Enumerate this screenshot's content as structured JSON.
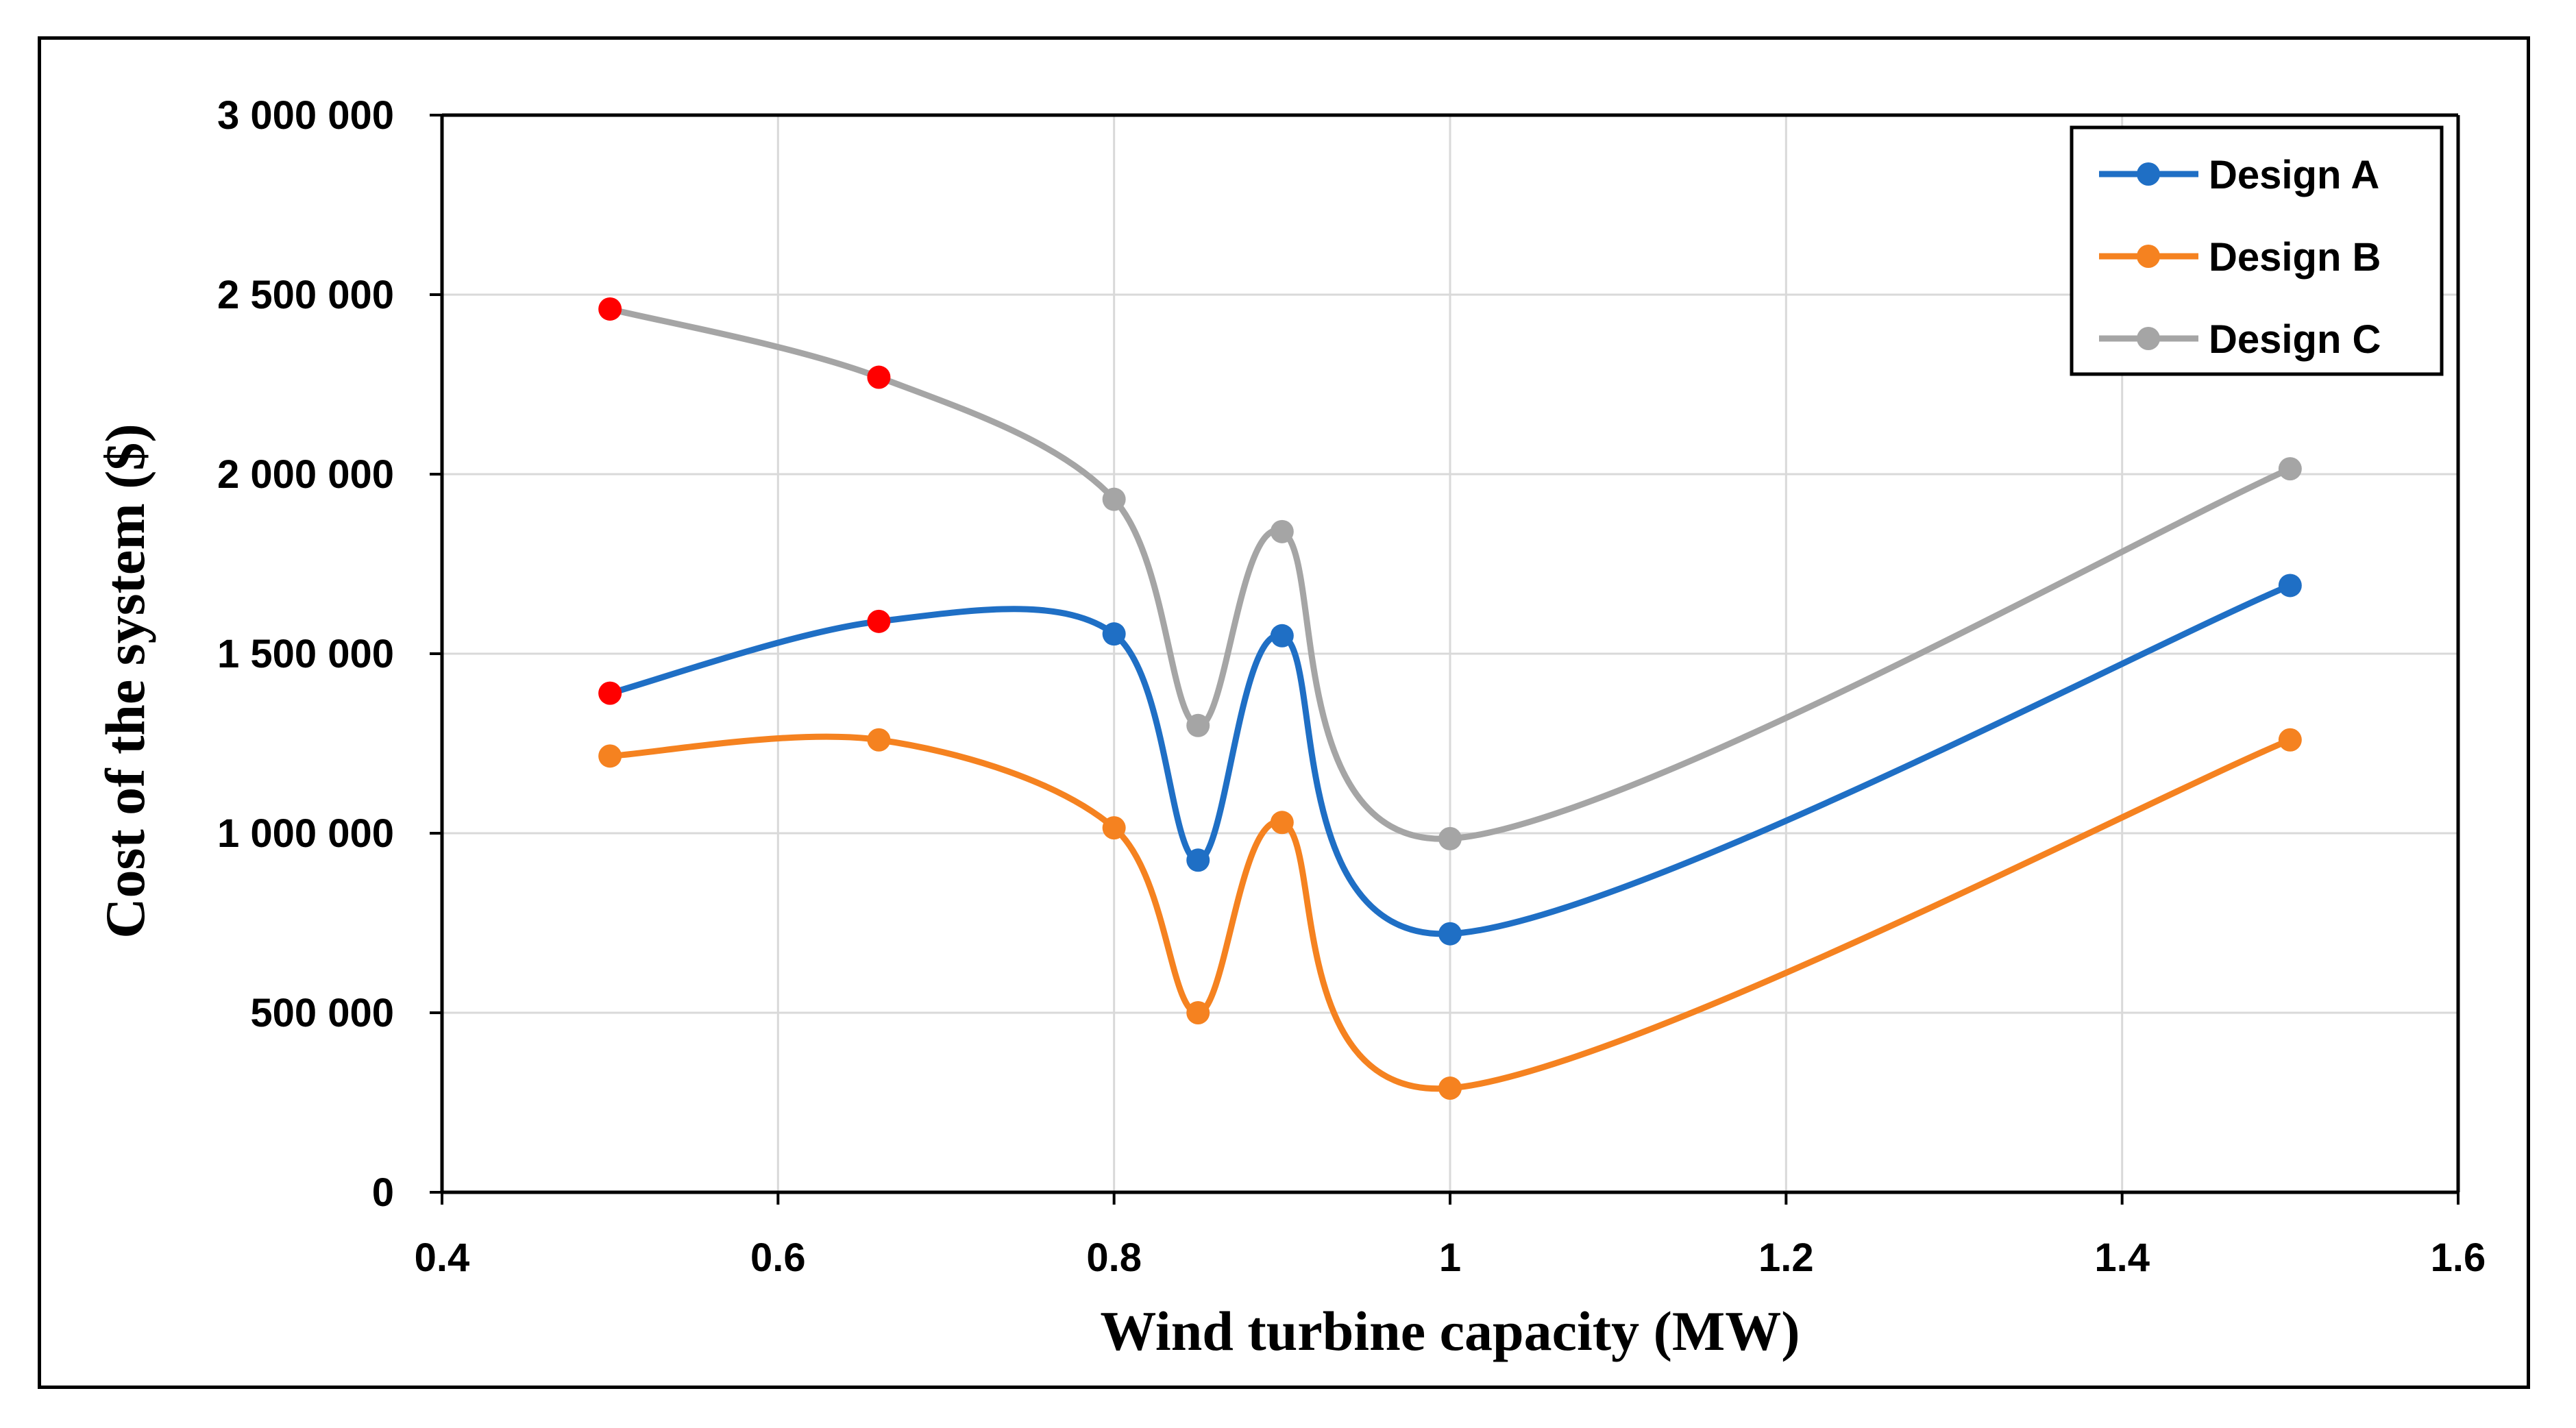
{
  "chart_data": {
    "type": "line",
    "title": "",
    "xlabel": "Wind turbine capacity (MW)",
    "ylabel": "Cost of the system ($)",
    "xlim": [
      0.4,
      1.6
    ],
    "ylim": [
      0,
      3000000
    ],
    "x_ticks": [
      0.4,
      0.6,
      0.8,
      1.0,
      1.2,
      1.4,
      1.6
    ],
    "x_tick_labels": [
      "0.4",
      "0.6",
      "0.8",
      "1",
      "1.2",
      "1.4",
      "1.6"
    ],
    "y_ticks": [
      0,
      500000,
      1000000,
      1500000,
      2000000,
      2500000,
      3000000
    ],
    "y_tick_labels": [
      "0",
      "500 000",
      "1 000 000",
      "1 500 000",
      "2 000 000",
      "2 500 000",
      "3 000 000"
    ],
    "grid": true,
    "smooth": true,
    "legend_position": "top-right",
    "highlight_color": "#ff0000",
    "x": [
      0.5,
      0.66,
      0.8,
      0.85,
      0.9,
      1.0,
      1.5
    ],
    "series": [
      {
        "name": "Design A",
        "color": "#1f6fc5",
        "values": [
          1390000,
          1590000,
          1555000,
          925000,
          1550000,
          720000,
          1690000
        ],
        "highlighted": [
          0,
          1
        ]
      },
      {
        "name": "Design B",
        "color": "#f58220",
        "values": [
          1215000,
          1260000,
          1015000,
          500000,
          1030000,
          290000,
          1260000
        ],
        "highlighted": []
      },
      {
        "name": "Design C",
        "color": "#a5a5a5",
        "values": [
          2460000,
          2270000,
          1930000,
          1300000,
          1840000,
          985000,
          2015000
        ],
        "highlighted": [
          0,
          1
        ]
      }
    ]
  }
}
